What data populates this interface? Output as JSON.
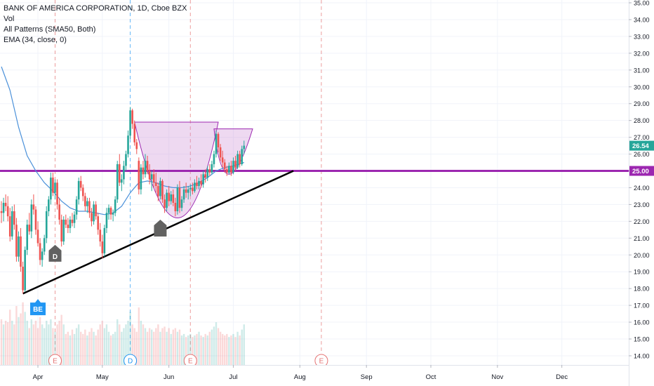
{
  "legend": {
    "title": "BANK OF AMERICA CORPORATION, 1D, Cboe BZX",
    "vol": "Vol",
    "patterns": "All Patterns (SMA50, Both)",
    "ema": "EMA (34, close, 0)"
  },
  "colors": {
    "up": "#26a69a",
    "down": "#ef5350",
    "ema": "#4a90d9",
    "level": "#9c27b0",
    "trendline": "#000000",
    "pattern_fill": "#ce93d8",
    "event_red": "#e57373",
    "event_blue": "#2196f3"
  },
  "chart_data": {
    "type": "candlestick",
    "y_axis": {
      "min": 13.5,
      "max": 35.0,
      "ticks": [
        "35.00",
        "34.00",
        "33.00",
        "32.00",
        "31.00",
        "30.00",
        "29.00",
        "28.00",
        "27.00",
        "26.00",
        "25.00",
        "24.00",
        "23.00",
        "22.00",
        "21.00",
        "20.00",
        "19.00",
        "18.00",
        "17.00",
        "16.00",
        "15.00",
        "14.00"
      ]
    },
    "x_axis": {
      "labels": [
        "Apr",
        "May",
        "Jun",
        "Jul",
        "Aug",
        "Sep",
        "Oct",
        "Nov",
        "Dec"
      ],
      "label_days": [
        17,
        47,
        78,
        108,
        139,
        170,
        200,
        231,
        261
      ]
    },
    "last_price_label": "26.54",
    "level_label": "25.00",
    "level_price": 25.0,
    "ohlc": [
      [
        0,
        22.6,
        23.2,
        21.9,
        22.5
      ],
      [
        1,
        22.5,
        23.4,
        22.0,
        23.1
      ],
      [
        2,
        23.1,
        23.6,
        22.6,
        22.9
      ],
      [
        3,
        22.9,
        23.5,
        22.0,
        22.3
      ],
      [
        4,
        22.3,
        22.8,
        20.8,
        21.1
      ],
      [
        5,
        21.1,
        22.9,
        20.9,
        22.6
      ],
      [
        6,
        22.6,
        23.0,
        21.5,
        21.8
      ],
      [
        7,
        21.8,
        22.2,
        19.6,
        19.9
      ],
      [
        8,
        19.9,
        21.4,
        19.6,
        21.1
      ],
      [
        9,
        21.1,
        21.6,
        19.0,
        19.3
      ],
      [
        10,
        19.3,
        19.6,
        17.7,
        17.9
      ],
      [
        11,
        17.9,
        20.5,
        17.8,
        20.3
      ],
      [
        12,
        20.3,
        22.1,
        20.0,
        21.8
      ],
      [
        13,
        21.8,
        22.5,
        21.2,
        21.4
      ],
      [
        14,
        21.4,
        23.3,
        21.0,
        23.0
      ],
      [
        15,
        23.0,
        23.6,
        22.4,
        22.7
      ],
      [
        16,
        22.7,
        22.9,
        21.2,
        21.5
      ],
      [
        17,
        21.5,
        22.0,
        20.5,
        20.7
      ],
      [
        18,
        20.7,
        21.0,
        19.4,
        19.7
      ],
      [
        19,
        19.7,
        20.4,
        19.3,
        20.2
      ],
      [
        20,
        20.2,
        21.2,
        20.0,
        21.0
      ],
      [
        21,
        21.0,
        22.9,
        20.7,
        22.6
      ],
      [
        22,
        22.6,
        23.5,
        22.3,
        23.3
      ],
      [
        23,
        23.3,
        24.9,
        23.0,
        24.6
      ],
      [
        24,
        24.6,
        24.9,
        23.5,
        23.7
      ],
      [
        25,
        23.7,
        24.5,
        23.3,
        24.3
      ],
      [
        26,
        24.3,
        24.5,
        22.7,
        23.0
      ],
      [
        27,
        23.0,
        23.4,
        21.8,
        22.1
      ],
      [
        28,
        22.1,
        22.4,
        20.5,
        20.8
      ],
      [
        29,
        20.8,
        22.3,
        20.6,
        22.1
      ],
      [
        30,
        22.1,
        22.4,
        21.6,
        21.8
      ],
      [
        31,
        21.8,
        22.2,
        21.3,
        21.6
      ],
      [
        32,
        21.6,
        22.3,
        21.3,
        22.1
      ],
      [
        33,
        22.1,
        22.5,
        21.7,
        21.9
      ],
      [
        34,
        21.9,
        22.6,
        21.6,
        22.4
      ],
      [
        35,
        22.4,
        23.5,
        22.1,
        23.3
      ],
      [
        36,
        23.3,
        24.6,
        23.0,
        24.4
      ],
      [
        37,
        24.4,
        24.7,
        23.8,
        24.0
      ],
      [
        38,
        24.0,
        24.2,
        23.2,
        23.5
      ],
      [
        39,
        23.5,
        23.7,
        22.6,
        22.9
      ],
      [
        40,
        22.9,
        23.4,
        22.5,
        23.2
      ],
      [
        41,
        23.2,
        23.4,
        22.2,
        22.5
      ],
      [
        42,
        22.5,
        22.8,
        21.7,
        22.0
      ],
      [
        43,
        22.0,
        23.2,
        21.8,
        23.0
      ],
      [
        44,
        23.0,
        23.2,
        22.1,
        22.3
      ],
      [
        45,
        22.3,
        22.5,
        21.2,
        21.5
      ],
      [
        46,
        21.5,
        21.9,
        20.5,
        20.8
      ],
      [
        47,
        20.8,
        21.2,
        19.8,
        20.1
      ],
      [
        48,
        20.1,
        21.8,
        19.9,
        21.6
      ],
      [
        49,
        21.6,
        22.8,
        21.3,
        22.5
      ],
      [
        50,
        22.5,
        23.0,
        22.1,
        22.8
      ],
      [
        51,
        22.8,
        22.9,
        22.1,
        22.4
      ],
      [
        52,
        22.4,
        22.7,
        22.0,
        22.5
      ],
      [
        53,
        22.5,
        23.5,
        22.3,
        23.3
      ],
      [
        54,
        23.3,
        25.6,
        23.1,
        25.4
      ],
      [
        55,
        25.4,
        26.0,
        24.1,
        24.3
      ],
      [
        56,
        24.3,
        24.8,
        23.8,
        24.5
      ],
      [
        57,
        24.5,
        25.6,
        24.2,
        25.3
      ],
      [
        58,
        25.3,
        26.2,
        25.0,
        26.0
      ],
      [
        59,
        26.0,
        27.4,
        25.8,
        27.1
      ],
      [
        60,
        27.1,
        28.8,
        26.9,
        28.6
      ],
      [
        61,
        28.6,
        28.7,
        27.5,
        27.8
      ],
      [
        62,
        27.8,
        28.0,
        26.5,
        26.7
      ],
      [
        63,
        26.7,
        26.9,
        26.0,
        26.3
      ],
      [
        64,
        25.6,
        25.8,
        23.6,
        23.9
      ],
      [
        65,
        23.9,
        25.4,
        23.6,
        25.2
      ],
      [
        66,
        25.2,
        25.6,
        24.5,
        24.8
      ],
      [
        67,
        24.8,
        26.0,
        24.6,
        25.6
      ],
      [
        68,
        25.6,
        25.9,
        24.8,
        25.0
      ],
      [
        69,
        25.0,
        25.4,
        24.2,
        24.5
      ],
      [
        70,
        24.5,
        25.0,
        23.8,
        24.8
      ],
      [
        71,
        24.8,
        25.1,
        24.0,
        24.3
      ],
      [
        72,
        24.3,
        24.9,
        23.7,
        24.1
      ],
      [
        73,
        24.1,
        24.3,
        23.2,
        23.5
      ],
      [
        74,
        23.5,
        24.6,
        23.3,
        24.4
      ],
      [
        75,
        24.4,
        24.5,
        23.1,
        23.3
      ],
      [
        76,
        23.3,
        23.6,
        22.5,
        22.8
      ],
      [
        77,
        22.8,
        23.9,
        22.6,
        23.7
      ],
      [
        78,
        23.7,
        24.1,
        22.9,
        23.2
      ],
      [
        79,
        23.2,
        23.8,
        23.0,
        23.6
      ],
      [
        80,
        23.6,
        23.9,
        22.9,
        23.1
      ],
      [
        81,
        23.1,
        23.4,
        22.3,
        22.6
      ],
      [
        82,
        22.6,
        24.2,
        22.4,
        24.0
      ],
      [
        83,
        24.0,
        24.4,
        22.5,
        22.8
      ],
      [
        84,
        22.8,
        23.5,
        22.6,
        23.3
      ],
      [
        85,
        23.3,
        24.1,
        23.1,
        23.9
      ],
      [
        86,
        23.9,
        24.3,
        23.4,
        23.7
      ],
      [
        87,
        23.7,
        24.1,
        23.3,
        23.9
      ],
      [
        88,
        23.9,
        24.2,
        23.5,
        24.0
      ],
      [
        89,
        24.0,
        24.3,
        23.6,
        23.8
      ],
      [
        90,
        23.8,
        24.5,
        23.7,
        24.3
      ],
      [
        91,
        24.3,
        24.7,
        23.9,
        24.1
      ],
      [
        92,
        24.1,
        24.6,
        23.9,
        24.4
      ],
      [
        93,
        24.4,
        24.8,
        24.0,
        24.2
      ],
      [
        94,
        24.2,
        25.0,
        24.0,
        24.8
      ],
      [
        95,
        24.8,
        25.1,
        24.3,
        24.6
      ],
      [
        96,
        24.6,
        25.3,
        24.4,
        25.1
      ],
      [
        97,
        25.1,
        25.4,
        24.7,
        24.9
      ],
      [
        98,
        24.9,
        25.6,
        24.8,
        25.4
      ],
      [
        99,
        25.4,
        26.2,
        25.2,
        26.0
      ],
      [
        100,
        26.0,
        27.4,
        25.8,
        27.2
      ],
      [
        101,
        27.2,
        27.3,
        26.1,
        26.4
      ],
      [
        102,
        26.4,
        26.6,
        25.6,
        25.8
      ],
      [
        103,
        25.8,
        26.2,
        25.2,
        25.5
      ],
      [
        104,
        25.5,
        25.7,
        24.9,
        25.1
      ],
      [
        105,
        25.1,
        25.3,
        24.7,
        24.9
      ],
      [
        106,
        24.9,
        25.5,
        24.8,
        25.3
      ],
      [
        107,
        25.3,
        25.6,
        24.7,
        24.9
      ],
      [
        108,
        24.9,
        25.8,
        24.8,
        25.6
      ],
      [
        109,
        25.6,
        25.9,
        25.0,
        25.2
      ],
      [
        110,
        25.2,
        26.2,
        25.1,
        26.0
      ],
      [
        111,
        26.0,
        26.2,
        25.2,
        25.4
      ],
      [
        112,
        25.4,
        26.5,
        25.3,
        26.3
      ],
      [
        113,
        26.3,
        26.8,
        26.0,
        26.5
      ]
    ],
    "volume": [
      0.62,
      0.55,
      0.6,
      0.58,
      0.75,
      0.6,
      0.55,
      0.8,
      0.65,
      0.7,
      0.85,
      0.72,
      0.6,
      0.5,
      0.62,
      0.55,
      0.6,
      0.5,
      0.65,
      0.55,
      0.5,
      0.6,
      0.55,
      0.62,
      0.5,
      0.45,
      0.55,
      0.6,
      0.68,
      0.55,
      0.42,
      0.45,
      0.4,
      0.48,
      0.42,
      0.5,
      0.55,
      0.45,
      0.42,
      0.48,
      0.4,
      0.45,
      0.5,
      0.45,
      0.4,
      0.48,
      0.55,
      0.6,
      0.5,
      0.55,
      0.45,
      0.4,
      0.42,
      0.45,
      0.62,
      0.55,
      0.45,
      0.5,
      0.55,
      0.6,
      0.72,
      0.55,
      0.5,
      0.45,
      0.78,
      0.6,
      0.55,
      0.5,
      0.45,
      0.5,
      0.48,
      0.45,
      0.5,
      0.55,
      0.45,
      0.5,
      0.52,
      0.45,
      0.5,
      0.42,
      0.48,
      0.5,
      0.45,
      0.48,
      0.4,
      0.42,
      0.38,
      0.4,
      0.42,
      0.38,
      0.4,
      0.42,
      0.45,
      0.4,
      0.38,
      0.42,
      0.4,
      0.45,
      0.48,
      0.52,
      0.58,
      0.5,
      0.45,
      0.42,
      0.4,
      0.42,
      0.38,
      0.4,
      0.42,
      0.38,
      0.45,
      0.4,
      0.48,
      0.55
    ],
    "ema": [
      [
        0,
        31.2
      ],
      [
        4,
        29.8
      ],
      [
        8,
        27.6
      ],
      [
        12,
        25.9
      ],
      [
        16,
        25.0
      ],
      [
        20,
        24.3
      ],
      [
        24,
        23.8
      ],
      [
        28,
        23.2
      ],
      [
        32,
        22.8
      ],
      [
        36,
        22.6
      ],
      [
        40,
        22.6
      ],
      [
        44,
        22.5
      ],
      [
        48,
        22.4
      ],
      [
        52,
        22.5
      ],
      [
        56,
        22.9
      ],
      [
        60,
        23.7
      ],
      [
        64,
        24.3
      ],
      [
        68,
        24.4
      ],
      [
        72,
        24.3
      ],
      [
        76,
        24.1
      ],
      [
        80,
        24.0
      ],
      [
        84,
        24.0
      ],
      [
        88,
        24.1
      ],
      [
        92,
        24.3
      ],
      [
        96,
        24.6
      ],
      [
        100,
        25.0
      ],
      [
        104,
        25.2
      ],
      [
        108,
        25.3
      ],
      [
        113,
        25.5
      ]
    ],
    "trendline": {
      "from": [
        10,
        17.7
      ],
      "to": [
        136,
        25.0
      ]
    },
    "patterns": [
      {
        "rim_left": [
          62,
          27.9
        ],
        "bottom": [
          82,
          22.2
        ],
        "rim_right": [
          101,
          27.9
        ]
      },
      {
        "rim_left": [
          99,
          27.5
        ],
        "bottom": [
          106,
          24.8
        ],
        "rim_right": [
          117,
          27.5
        ]
      }
    ],
    "markers": [
      {
        "label": "BE",
        "day": 17,
        "price": 17.5,
        "kind": "up"
      },
      {
        "label": "D",
        "day": 25,
        "price": 20.6,
        "kind": "down"
      },
      {
        "label": "",
        "day": 74,
        "price": 22.1,
        "kind": "down"
      }
    ],
    "events": [
      {
        "label": "E",
        "day": 25,
        "kind": "red"
      },
      {
        "label": "D",
        "day": 60,
        "kind": "blue"
      },
      {
        "label": "E",
        "day": 88,
        "kind": "red"
      },
      {
        "label": "E",
        "day": 149,
        "kind": "red"
      }
    ]
  }
}
